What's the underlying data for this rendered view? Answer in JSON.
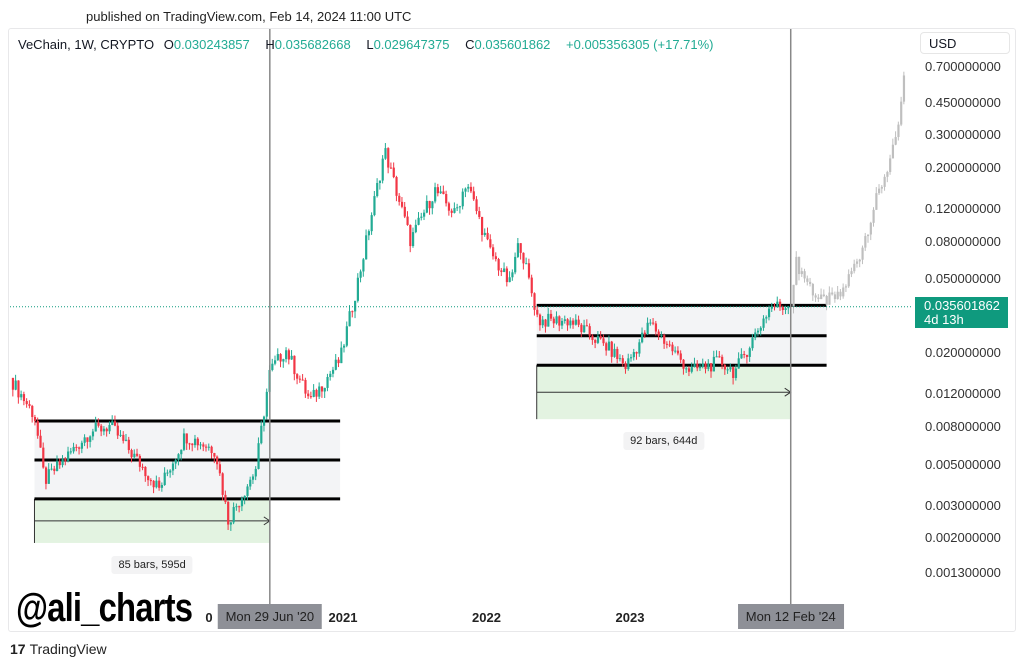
{
  "header": {
    "published": "published on TradingView.com, Feb 14, 2024 11:00 UTC"
  },
  "legend": {
    "symbol": "VeChain, 1W, CRYPTO",
    "o_label": "O",
    "o": "0.030243857",
    "h_label": "H",
    "h": "0.035682668",
    "l_label": "L",
    "l": "0.029647375",
    "c_label": "C",
    "c": "0.035601862",
    "change": "+0.005356305 (+17.71%)"
  },
  "price_axis": {
    "currency": "USD",
    "last_price": "0.035601862",
    "countdown": "4d 13h"
  },
  "colors": {
    "up": "#22ab94",
    "down": "#f23645",
    "projection": "#bfbfbf",
    "last": "#0f9a7e"
  },
  "watermark": "@ali_charts",
  "footer": {
    "brand": "TradingView",
    "logo": "17"
  },
  "chart_data": {
    "type": "candlestick",
    "scale": "log",
    "yticks": [
      0.7,
      0.45,
      0.3,
      0.2,
      0.12,
      0.08,
      0.05,
      0.02,
      0.012,
      0.008,
      0.005,
      0.003,
      0.002,
      0.0013
    ],
    "ytick_labels": [
      "0.700000000",
      "0.450000000",
      "0.300000000",
      "0.200000000",
      "0.120000000",
      "0.080000000",
      "0.050000000",
      "0.020000000",
      "0.012000000",
      "0.008000000",
      "0.005000000",
      "0.003000000",
      "0.002000000",
      "0.001300000"
    ],
    "xticks": [
      {
        "label": "0",
        "year": 2020.0
      },
      {
        "label": "2021",
        "year": 2021
      },
      {
        "label": "2022",
        "year": 2022
      },
      {
        "label": "2023",
        "year": 2023
      }
    ],
    "markers": [
      {
        "label": "Mon 29 Jun '20",
        "year": 2020.49
      },
      {
        "label": "Mon 12 Feb '24",
        "year": 2024.12
      }
    ],
    "price_path": [
      [
        2018.68,
        0.0147
      ],
      [
        2018.85,
        0.0092
      ],
      [
        2018.92,
        0.0041
      ],
      [
        2019.24,
        0.0076
      ],
      [
        2019.38,
        0.0081
      ],
      [
        2019.72,
        0.0037
      ],
      [
        2019.9,
        0.0072
      ],
      [
        2020.11,
        0.006
      ],
      [
        2020.2,
        0.0025
      ],
      [
        2020.39,
        0.0047
      ],
      [
        2020.49,
        0.016
      ],
      [
        2020.6,
        0.021
      ],
      [
        2020.77,
        0.011
      ],
      [
        2020.98,
        0.0185
      ],
      [
        2021.12,
        0.056
      ],
      [
        2021.29,
        0.25
      ],
      [
        2021.47,
        0.081
      ],
      [
        2021.64,
        0.152
      ],
      [
        2021.78,
        0.112
      ],
      [
        2021.86,
        0.17
      ],
      [
        2022.02,
        0.072
      ],
      [
        2022.16,
        0.047
      ],
      [
        2022.23,
        0.081
      ],
      [
        2022.36,
        0.03
      ],
      [
        2022.58,
        0.03
      ],
      [
        2022.86,
        0.021
      ],
      [
        2022.97,
        0.017
      ],
      [
        2023.14,
        0.029
      ],
      [
        2023.42,
        0.016
      ],
      [
        2023.63,
        0.018
      ],
      [
        2023.73,
        0.0158
      ],
      [
        2023.98,
        0.036
      ],
      [
        2024.12,
        0.0356
      ]
    ],
    "projection_path": [
      [
        2024.12,
        0.0356
      ],
      [
        2024.15,
        0.063
      ],
      [
        2024.32,
        0.038
      ],
      [
        2024.46,
        0.04
      ],
      [
        2024.6,
        0.068
      ],
      [
        2024.71,
        0.13
      ],
      [
        2024.85,
        0.27
      ],
      [
        2024.92,
        0.63
      ]
    ],
    "ranges": [
      {
        "start": 2018.85,
        "end": 2020.98,
        "levels": [
          0.0086,
          0.0053,
          0.00327
        ],
        "zone_low": 0.00189,
        "measure_end": 2020.49,
        "label": "85 bars, 595d"
      },
      {
        "start": 2022.35,
        "end": 2024.37,
        "levels": [
          0.0362,
          0.0248,
          0.0172
        ],
        "zone_low": 0.0088,
        "measure_end": 2024.12,
        "label": "92 bars, 644d"
      }
    ]
  }
}
